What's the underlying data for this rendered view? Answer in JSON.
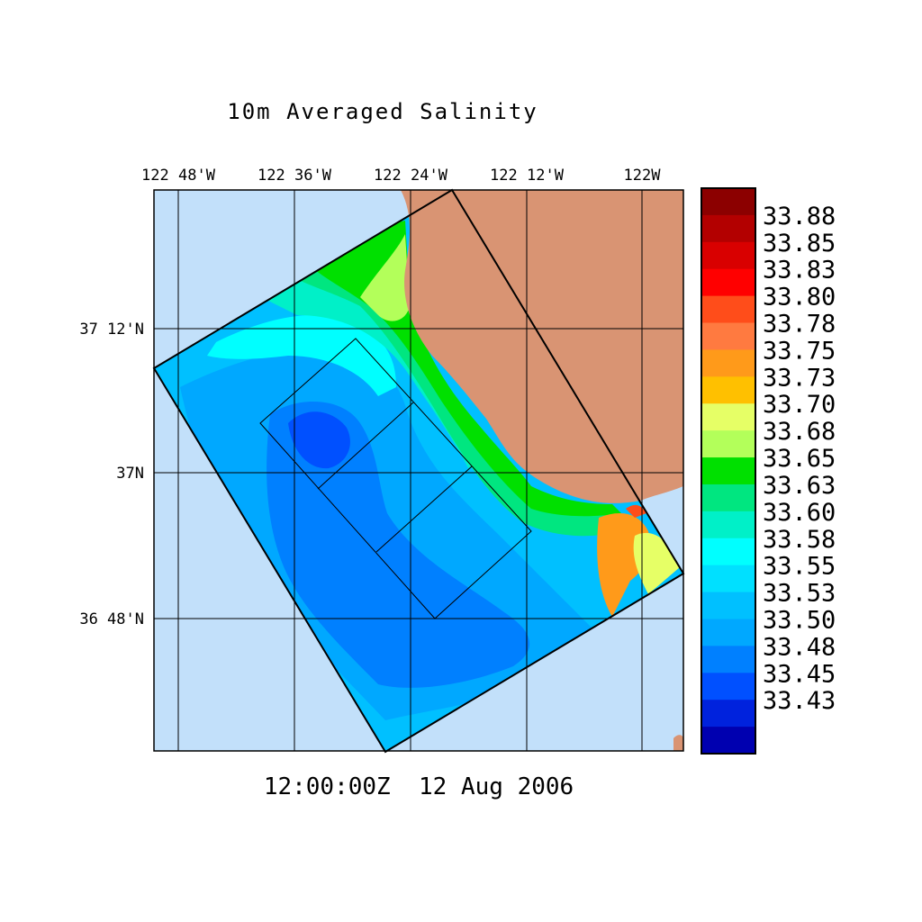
{
  "title": "10m Averaged Salinity",
  "timestamp": "12:00:00Z  12 Aug 2006",
  "lon_labels": [
    "122 48'W",
    "122 36'W",
    "122 24'W",
    "122 12'W",
    "122W"
  ],
  "lat_labels": [
    "37 12'N",
    "37N",
    "36 48'N"
  ],
  "colorbar": {
    "labels": [
      "33.88",
      "33.85",
      "33.83",
      "33.80",
      "33.78",
      "33.75",
      "33.73",
      "33.70",
      "33.68",
      "33.65",
      "33.63",
      "33.60",
      "33.58",
      "33.55",
      "33.53",
      "33.50",
      "33.48",
      "33.45",
      "33.43"
    ],
    "colors": [
      "#8c0000",
      "#b30000",
      "#d90000",
      "#ff0000",
      "#ff4d1a",
      "#ff7a40",
      "#ff9a1a",
      "#ffc000",
      "#e6ff66",
      "#b3ff5a",
      "#00e000",
      "#00e680",
      "#00f0c8",
      "#00ffff",
      "#00e0ff",
      "#00c0ff",
      "#00a8ff",
      "#0080ff",
      "#0050ff",
      "#0022dd",
      "#0000b0"
    ]
  },
  "colors": {
    "ocean": "#c2e0fa",
    "land": "#d99473"
  }
}
